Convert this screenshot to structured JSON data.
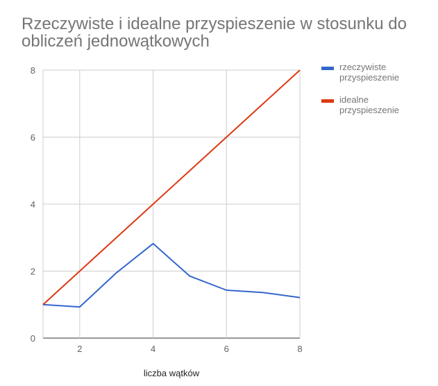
{
  "chart_data": {
    "type": "line",
    "title_lines": [
      "Rzeczywiste i idealne przyspieszenie w stosunku do",
      "obliczeń jednowątkowych"
    ],
    "xlabel": "liczba wątków",
    "ylabel": "",
    "xlim": [
      1,
      8
    ],
    "ylim": [
      0,
      8
    ],
    "xticks": [
      2,
      4,
      6,
      8
    ],
    "yticks": [
      0,
      2,
      4,
      6,
      8
    ],
    "grid": true,
    "legend_position": "right",
    "x": [
      1,
      2,
      3,
      4,
      5,
      6,
      7,
      8
    ],
    "series": [
      {
        "name_lines": [
          "rzeczywiste",
          "przyspieszenie"
        ],
        "color": "#3366cc",
        "values": [
          1.0,
          0.93,
          1.95,
          2.82,
          1.85,
          1.43,
          1.36,
          1.21
        ]
      },
      {
        "name_lines": [
          "idealne",
          "przyspieszenie"
        ],
        "color": "#dc3912",
        "values": [
          1,
          2,
          3,
          4,
          5,
          6,
          7,
          8
        ]
      }
    ]
  }
}
